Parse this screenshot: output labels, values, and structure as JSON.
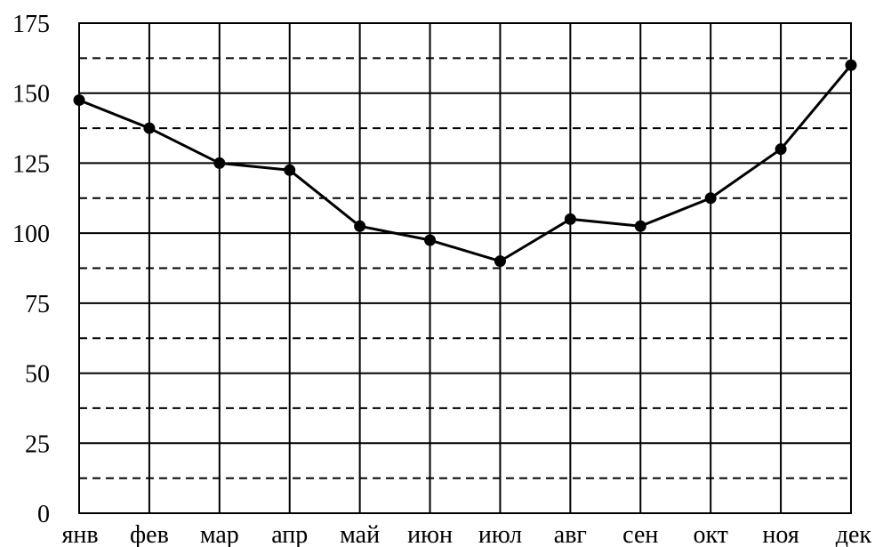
{
  "chart_data": {
    "type": "line",
    "title": "",
    "xlabel": "",
    "ylabel": "",
    "categories": [
      "янв",
      "фев",
      "мар",
      "апр",
      "май",
      "июн",
      "июл",
      "авг",
      "сен",
      "окт",
      "ноя",
      "дек"
    ],
    "series": [
      {
        "values": [
          147.5,
          137.5,
          125,
          122.5,
          102.5,
          97.5,
          90,
          105,
          102.5,
          112.5,
          130,
          160
        ]
      }
    ],
    "ylim": [
      0,
      175
    ],
    "yticks": [
      "0",
      "25",
      "50",
      "75",
      "100",
      "125",
      "150",
      "175"
    ],
    "ytick_values": [
      0,
      25,
      50,
      75,
      100,
      125,
      150,
      175
    ],
    "minor_grid_values": [
      12.5,
      37.5,
      62.5,
      87.5,
      112.5,
      137.5,
      162.5
    ],
    "grid": true,
    "legend": "none",
    "line_color": "#000000",
    "grid_color": "#000000"
  }
}
